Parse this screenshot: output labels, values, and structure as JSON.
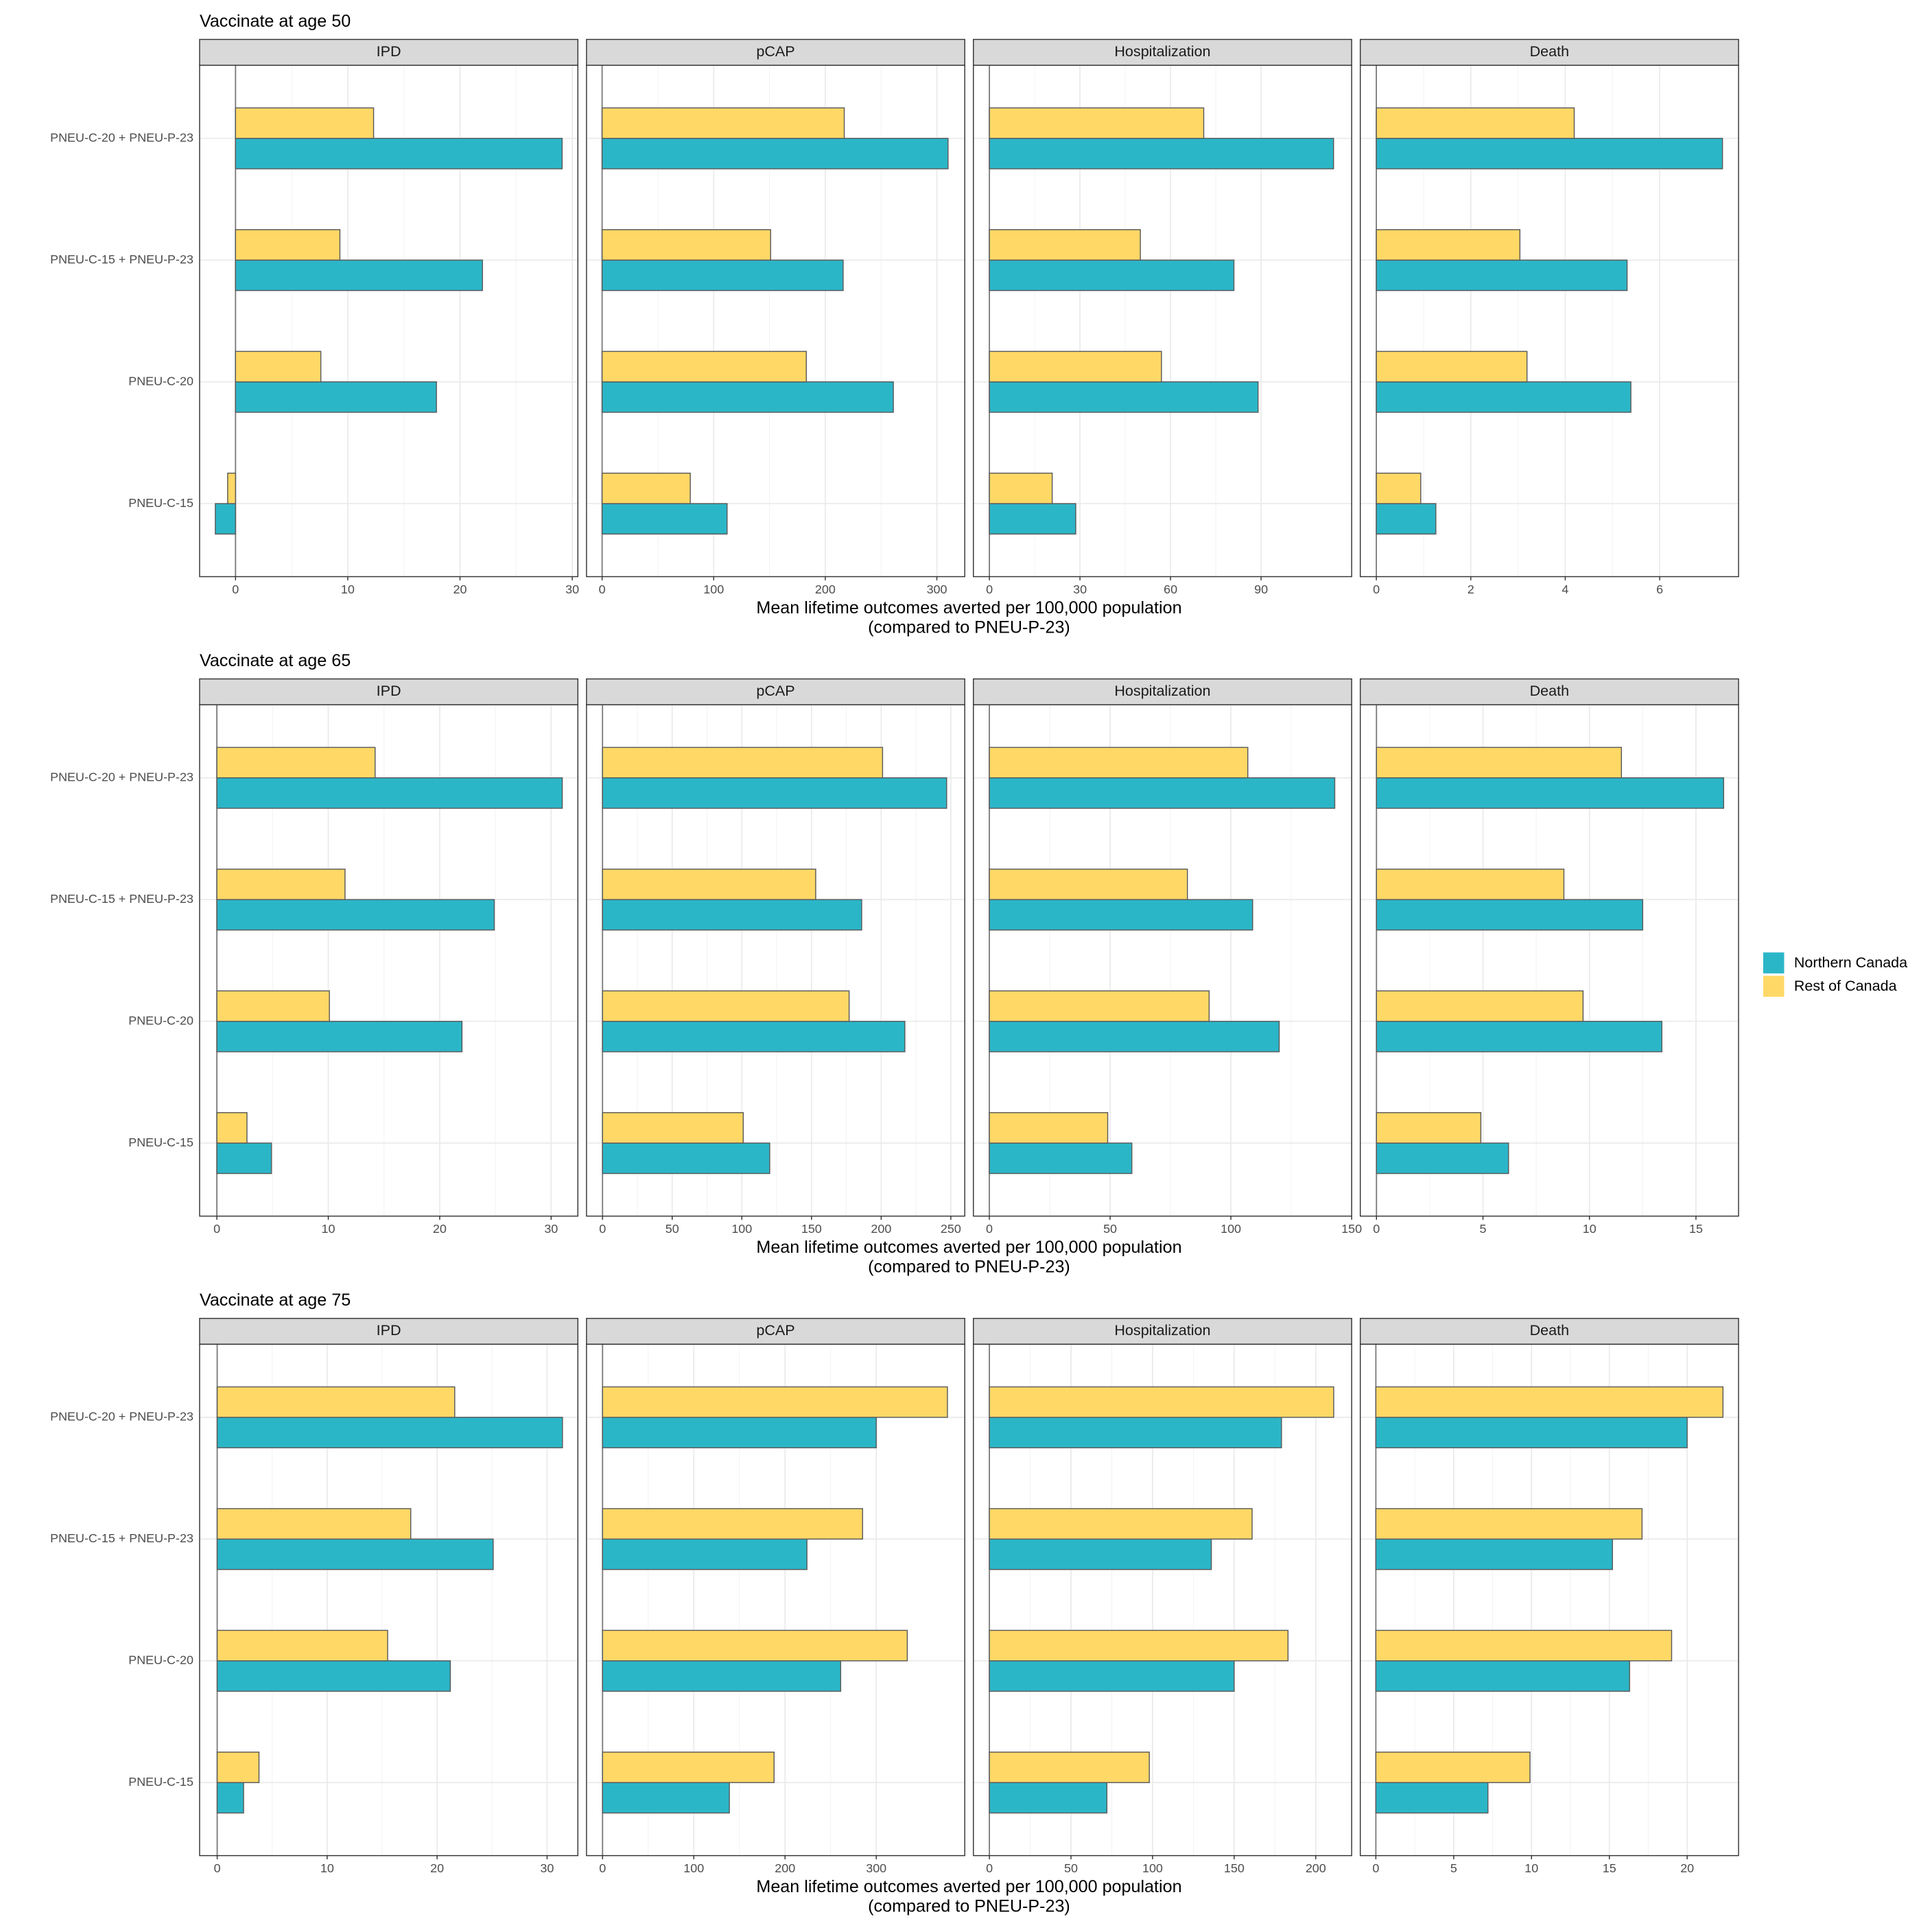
{
  "chart_data": [
    {
      "type": "bar",
      "orientation": "horizontal",
      "title": "Vaccinate at age 50",
      "xlabel": [
        "Mean lifetime outcomes averted per 100,000 population",
        "(compared to PNEU-P-23)"
      ],
      "categories": [
        "PNEU-C-20 + PNEU-P-23",
        "PNEU-C-15 + PNEU-P-23",
        "PNEU-C-20",
        "PNEU-C-15"
      ],
      "grid": true,
      "facets": [
        {
          "title": "IPD",
          "xlim": [
            -3.2,
            30.5
          ],
          "xticks": [
            0,
            10,
            20,
            30
          ],
          "series": [
            {
              "name": "Northern Canada",
              "color": "#2bb6c8",
              "values": [
                29.1,
                22.0,
                17.9,
                -1.8
              ]
            },
            {
              "name": "Rest of Canada",
              "color": "#ffd866",
              "values": [
                12.3,
                9.3,
                7.6,
                -0.7
              ]
            }
          ]
        },
        {
          "title": "pCAP",
          "xlim": [
            -14,
            325
          ],
          "xticks": [
            0,
            100,
            200,
            300
          ],
          "series": [
            {
              "name": "Northern Canada",
              "color": "#2bb6c8",
              "values": [
                310,
                216,
                261,
                112
              ]
            },
            {
              "name": "Rest of Canada",
              "color": "#ffd866",
              "values": [
                217,
                151,
                183,
                79
              ]
            }
          ]
        },
        {
          "title": "Hospitalization",
          "xlim": [
            -5.3,
            120
          ],
          "xticks": [
            0,
            30,
            60,
            90
          ],
          "series": [
            {
              "name": "Northern Canada",
              "color": "#2bb6c8",
              "values": [
                114,
                81,
                89,
                28.6
              ]
            },
            {
              "name": "Rest of Canada",
              "color": "#ffd866",
              "values": [
                71,
                50,
                57,
                20.8
              ]
            }
          ]
        },
        {
          "title": "Death",
          "xlim": [
            -0.34,
            7.67
          ],
          "xticks": [
            0,
            2,
            4,
            6
          ],
          "series": [
            {
              "name": "Northern Canada",
              "color": "#2bb6c8",
              "values": [
                7.33,
                5.31,
                5.39,
                1.26
              ]
            },
            {
              "name": "Rest of Canada",
              "color": "#ffd866",
              "values": [
                4.19,
                3.04,
                3.19,
                0.94
              ]
            }
          ]
        }
      ]
    },
    {
      "type": "bar",
      "orientation": "horizontal",
      "title": "Vaccinate at age 65",
      "xlabel": [
        "Mean lifetime outcomes averted per 100,000 population",
        "(compared to PNEU-P-23)"
      ],
      "categories": [
        "PNEU-C-20 + PNEU-P-23",
        "PNEU-C-15 + PNEU-P-23",
        "PNEU-C-20",
        "PNEU-C-15"
      ],
      "grid": true,
      "facets": [
        {
          "title": "IPD",
          "xlim": [
            -1.55,
            32.4
          ],
          "xticks": [
            0,
            10,
            20,
            30
          ],
          "series": [
            {
              "name": "Northern Canada",
              "color": "#2bb6c8",
              "values": [
                31.0,
                24.9,
                22.0,
                4.9
              ]
            },
            {
              "name": "Rest of Canada",
              "color": "#ffd866",
              "values": [
                14.2,
                11.5,
                10.1,
                2.7
              ]
            }
          ]
        },
        {
          "title": "pCAP",
          "xlim": [
            -11.5,
            260
          ],
          "xticks": [
            0,
            50,
            100,
            150,
            200,
            250
          ],
          "series": [
            {
              "name": "Northern Canada",
              "color": "#2bb6c8",
              "values": [
                247,
                186,
                217,
                120
              ]
            },
            {
              "name": "Rest of Canada",
              "color": "#ffd866",
              "values": [
                201,
                153,
                177,
                101
              ]
            }
          ]
        },
        {
          "title": "Hospitalization",
          "xlim": [
            -6.6,
            150
          ],
          "xticks": [
            0,
            50,
            100,
            150
          ],
          "series": [
            {
              "name": "Northern Canada",
              "color": "#2bb6c8",
              "values": [
                143,
                109,
                120,
                59
              ]
            },
            {
              "name": "Rest of Canada",
              "color": "#ffd866",
              "values": [
                107,
                82,
                91,
                49
              ]
            }
          ]
        },
        {
          "title": "Death",
          "xlim": [
            -0.76,
            17.0
          ],
          "xticks": [
            0,
            5,
            10,
            15
          ],
          "series": [
            {
              "name": "Northern Canada",
              "color": "#2bb6c8",
              "values": [
                16.3,
                12.5,
                13.4,
                6.2
              ]
            },
            {
              "name": "Rest of Canada",
              "color": "#ffd866",
              "values": [
                11.5,
                8.8,
                9.7,
                4.9
              ]
            }
          ]
        }
      ]
    },
    {
      "type": "bar",
      "orientation": "horizontal",
      "title": "Vaccinate at age 75",
      "xlabel": [
        "Mean lifetime outcomes averted per 100,000 population",
        "(compared to PNEU-P-23)"
      ],
      "categories": [
        "PNEU-C-20 + PNEU-P-23",
        "PNEU-C-15 + PNEU-P-23",
        "PNEU-C-20",
        "PNEU-C-15"
      ],
      "grid": true,
      "facets": [
        {
          "title": "IPD",
          "xlim": [
            -1.6,
            32.8
          ],
          "xticks": [
            0,
            10,
            20,
            30
          ],
          "series": [
            {
              "name": "Northern Canada",
              "color": "#2bb6c8",
              "values": [
                31.4,
                25.1,
                21.2,
                2.4
              ]
            },
            {
              "name": "Rest of Canada",
              "color": "#ffd866",
              "values": [
                21.6,
                17.6,
                15.5,
                3.8
              ]
            }
          ]
        },
        {
          "title": "pCAP",
          "xlim": [
            -17.6,
            397
          ],
          "xticks": [
            0,
            100,
            200,
            300
          ],
          "series": [
            {
              "name": "Northern Canada",
              "color": "#2bb6c8",
              "values": [
                300,
                224,
                261,
                139
              ]
            },
            {
              "name": "Rest of Canada",
              "color": "#ffd866",
              "values": [
                378,
                285,
                334,
                188
              ]
            }
          ]
        },
        {
          "title": "Hospitalization",
          "xlim": [
            -9.8,
            222
          ],
          "xticks": [
            0,
            50,
            100,
            150,
            200
          ],
          "series": [
            {
              "name": "Northern Canada",
              "color": "#2bb6c8",
              "values": [
                179,
                136,
                150,
                72
              ]
            },
            {
              "name": "Rest of Canada",
              "color": "#ffd866",
              "values": [
                211,
                161,
                183,
                98
              ]
            }
          ]
        },
        {
          "title": "Death",
          "xlim": [
            -1.0,
            23.3
          ],
          "xticks": [
            0,
            5,
            10,
            15,
            20
          ],
          "series": [
            {
              "name": "Northern Canada",
              "color": "#2bb6c8",
              "values": [
                20.0,
                15.2,
                16.3,
                7.2
              ]
            },
            {
              "name": "Rest of Canada",
              "color": "#ffd866",
              "values": [
                22.3,
                17.1,
                19.0,
                9.9
              ]
            }
          ]
        }
      ]
    }
  ]
}
